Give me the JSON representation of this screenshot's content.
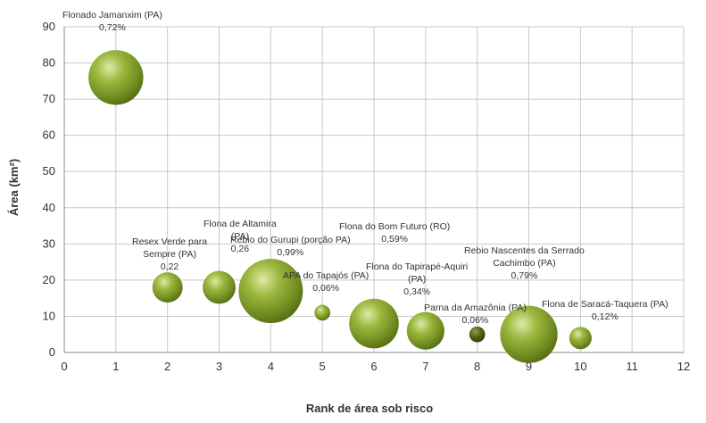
{
  "chart_data": {
    "type": "scatter",
    "title": "",
    "xlabel": "Rank de área sob risco",
    "ylabel": "Área (km²)",
    "xlim": [
      0,
      12
    ],
    "ylim": [
      0,
      90
    ],
    "x_ticks": [
      "0",
      "1",
      "2",
      "3",
      "4",
      "5",
      "6",
      "7",
      "8",
      "9",
      "10",
      "11",
      "12"
    ],
    "y_ticks": [
      "0",
      "10",
      "20",
      "30",
      "40",
      "50",
      "60",
      "70",
      "80",
      "90"
    ],
    "grid": true,
    "bubble_color": "#8aa832",
    "points": [
      {
        "x": 1,
        "y": 76,
        "size": 0.72,
        "label_lines": [
          "Flonado Jamanxim (PA)",
          "0,72%"
        ]
      },
      {
        "x": 2,
        "y": 18,
        "size": 0.22,
        "label_lines": [
          "Resex Verde para",
          "Sempre (PA)",
          "0,22"
        ]
      },
      {
        "x": 3,
        "y": 18,
        "size": 0.26,
        "label_lines": [
          "Flona de Altamira",
          "(PA)",
          "0,26"
        ]
      },
      {
        "x": 4,
        "y": 17,
        "size": 0.99,
        "label_lines": [
          "Rebio do Gurupi (porção PA)",
          "0,99%"
        ]
      },
      {
        "x": 5,
        "y": 11,
        "size": 0.06,
        "label_lines": [
          "APA do Tapajós (PA)",
          "0,06%"
        ]
      },
      {
        "x": 6,
        "y": 8,
        "size": 0.59,
        "label_lines": [
          "Flona do Bom Futuro (RO)",
          "0,59%"
        ]
      },
      {
        "x": 7,
        "y": 6,
        "size": 0.34,
        "label_lines": [
          "Flona do Tapirapé-Aquiri",
          "(PA)",
          "0,34%"
        ]
      },
      {
        "x": 8,
        "y": 5,
        "size": 0.06,
        "label_lines": [
          "Parna da Amazônia (PA)",
          "0,06%"
        ]
      },
      {
        "x": 9,
        "y": 5,
        "size": 0.79,
        "label_lines": [
          "Rebio Nascentes da Serrado",
          "Cachimbo (PA)",
          "0,79%"
        ]
      },
      {
        "x": 10,
        "y": 4,
        "size": 0.12,
        "label_lines": [
          "Flona de Saracá-Taquera (PA)",
          "0,12%"
        ]
      }
    ]
  }
}
